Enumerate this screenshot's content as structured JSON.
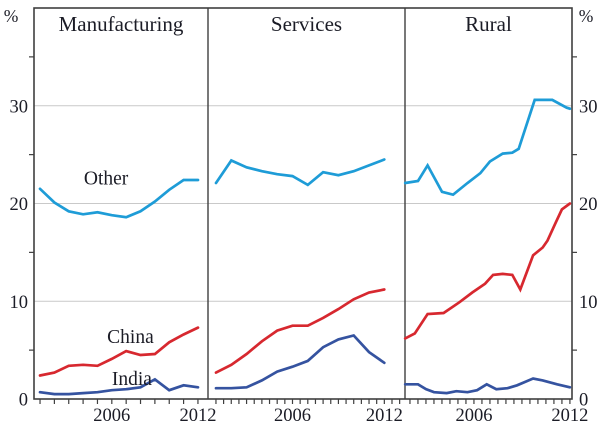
{
  "chart_data": {
    "type": "line",
    "description": "Three-panel line chart comparing Other, China and India shares (%) for Manufacturing, Services and Rural sectors",
    "y_axis": {
      "unit": "%",
      "min": 0,
      "max": 40,
      "major_labels": [
        0,
        10,
        20,
        30
      ],
      "gridlines": [
        10,
        20,
        30
      ],
      "minor_ticks": [
        5,
        15,
        25,
        35
      ],
      "grid_on": true
    },
    "x_axis": {
      "labeled_years": [
        2006,
        2012
      ]
    },
    "colors": {
      "other": "#1e9cd7",
      "china": "#d7282f",
      "india": "#3553a0",
      "grid": "#c9c9c9",
      "frame": "#3f3f3f",
      "text": "#1b1c26"
    },
    "panels": [
      {
        "title": "Manufacturing",
        "tick_step": 1,
        "tick_range": [
          2001,
          2012
        ],
        "series": [
          {
            "name": "Other",
            "color": "other",
            "points": [
              [
                2001,
                21.5
              ],
              [
                2002,
                20.1
              ],
              [
                2003,
                19.2
              ],
              [
                2004,
                18.9
              ],
              [
                2005,
                19.1
              ],
              [
                2006,
                18.8
              ],
              [
                2007,
                18.6
              ],
              [
                2008,
                19.2
              ],
              [
                2009,
                20.2
              ],
              [
                2010,
                21.4
              ],
              [
                2011,
                22.4
              ],
              [
                2012,
                22.4
              ]
            ]
          },
          {
            "name": "China",
            "color": "china",
            "points": [
              [
                2001,
                2.4
              ],
              [
                2002,
                2.7
              ],
              [
                2003,
                3.4
              ],
              [
                2004,
                3.5
              ],
              [
                2005,
                3.4
              ],
              [
                2006,
                4.1
              ],
              [
                2007,
                4.9
              ],
              [
                2008,
                4.5
              ],
              [
                2009,
                4.6
              ],
              [
                2010,
                5.8
              ],
              [
                2011,
                6.6
              ],
              [
                2012,
                7.3
              ]
            ]
          },
          {
            "name": "India",
            "color": "india",
            "points": [
              [
                2001,
                0.7
              ],
              [
                2002,
                0.5
              ],
              [
                2003,
                0.5
              ],
              [
                2004,
                0.6
              ],
              [
                2005,
                0.7
              ],
              [
                2006,
                0.9
              ],
              [
                2007,
                1.0
              ],
              [
                2008,
                1.2
              ],
              [
                2009,
                2.0
              ],
              [
                2010,
                0.9
              ],
              [
                2011,
                1.4
              ],
              [
                2012,
                1.2
              ]
            ]
          }
        ],
        "inline_labels": [
          {
            "text": "Other",
            "color": "other",
            "year": 2005.6,
            "value": 22.6
          },
          {
            "text": "China",
            "color": "china",
            "year": 2007.3,
            "value": 6.4
          },
          {
            "text": "India",
            "color": "india",
            "year": 2007.4,
            "value": 2.1
          }
        ]
      },
      {
        "title": "Services",
        "tick_step": 0.5,
        "tick_range": [
          2001,
          2013
        ],
        "series": [
          {
            "name": "Other",
            "color": "other",
            "points": [
              [
                2001,
                22.1
              ],
              [
                2002,
                24.4
              ],
              [
                2003,
                23.7
              ],
              [
                2004,
                23.3
              ],
              [
                2005,
                23.0
              ],
              [
                2006,
                22.8
              ],
              [
                2007,
                21.9
              ],
              [
                2008,
                23.2
              ],
              [
                2009,
                22.9
              ],
              [
                2010,
                23.3
              ],
              [
                2011,
                23.9
              ],
              [
                2012,
                24.5
              ]
            ]
          },
          {
            "name": "China",
            "color": "china",
            "points": [
              [
                2001,
                2.7
              ],
              [
                2002,
                3.5
              ],
              [
                2003,
                4.6
              ],
              [
                2004,
                5.9
              ],
              [
                2005,
                7.0
              ],
              [
                2006,
                7.5
              ],
              [
                2007,
                7.5
              ],
              [
                2008,
                8.3
              ],
              [
                2009,
                9.2
              ],
              [
                2010,
                10.2
              ],
              [
                2011,
                10.9
              ],
              [
                2012,
                11.2
              ]
            ]
          },
          {
            "name": "India",
            "color": "india",
            "points": [
              [
                2001,
                1.1
              ],
              [
                2002,
                1.1
              ],
              [
                2003,
                1.2
              ],
              [
                2004,
                1.9
              ],
              [
                2005,
                2.8
              ],
              [
                2006,
                3.3
              ],
              [
                2007,
                3.9
              ],
              [
                2008,
                5.3
              ],
              [
                2009,
                6.1
              ],
              [
                2010,
                6.5
              ],
              [
                2011,
                4.8
              ],
              [
                2012,
                3.7
              ]
            ]
          }
        ],
        "inline_labels": []
      },
      {
        "title": "Rural",
        "tick_step": 0.5,
        "tick_range": [
          2002,
          2012
        ],
        "series": [
          {
            "name": "Other",
            "color": "other",
            "points": [
              [
                2001.7,
                22.1
              ],
              [
                2002.5,
                22.3
              ],
              [
                2003.1,
                23.9
              ],
              [
                2004.0,
                21.2
              ],
              [
                2004.7,
                20.9
              ],
              [
                2005.6,
                22.1
              ],
              [
                2006.4,
                23.1
              ],
              [
                2007.0,
                24.3
              ],
              [
                2007.8,
                25.1
              ],
              [
                2008.4,
                25.2
              ],
              [
                2008.8,
                25.6
              ],
              [
                2009.8,
                30.6
              ],
              [
                2010.9,
                30.6
              ],
              [
                2011.8,
                29.8
              ],
              [
                2012,
                29.7
              ]
            ]
          },
          {
            "name": "China",
            "color": "china",
            "points": [
              [
                2001.7,
                6.2
              ],
              [
                2002.3,
                6.7
              ],
              [
                2003.1,
                8.7
              ],
              [
                2004.1,
                8.8
              ],
              [
                2005.1,
                9.9
              ],
              [
                2005.9,
                10.9
              ],
              [
                2006.7,
                11.8
              ],
              [
                2007.2,
                12.7
              ],
              [
                2007.8,
                12.8
              ],
              [
                2008.4,
                12.7
              ],
              [
                2008.9,
                11.2
              ],
              [
                2009.7,
                14.7
              ],
              [
                2010.3,
                15.5
              ],
              [
                2010.6,
                16.2
              ],
              [
                2011.1,
                18.0
              ],
              [
                2011.5,
                19.4
              ],
              [
                2012,
                20.0
              ]
            ]
          },
          {
            "name": "India",
            "color": "india",
            "points": [
              [
                2001.7,
                1.5
              ],
              [
                2002.5,
                1.5
              ],
              [
                2003.0,
                1.0
              ],
              [
                2003.5,
                0.7
              ],
              [
                2004.3,
                0.6
              ],
              [
                2004.9,
                0.8
              ],
              [
                2005.6,
                0.7
              ],
              [
                2006.2,
                0.9
              ],
              [
                2006.8,
                1.5
              ],
              [
                2007.4,
                1.0
              ],
              [
                2008.1,
                1.1
              ],
              [
                2008.7,
                1.4
              ],
              [
                2009.7,
                2.1
              ],
              [
                2010.3,
                1.9
              ],
              [
                2011.2,
                1.5
              ],
              [
                2012,
                1.2
              ]
            ]
          }
        ],
        "inline_labels": []
      }
    ]
  }
}
